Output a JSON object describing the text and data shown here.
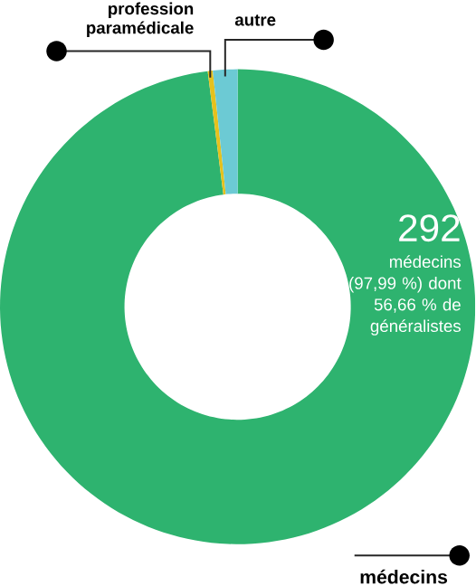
{
  "chart_data": {
    "type": "donut",
    "categories": [
      "médecins",
      "profession paramédicale",
      "autre"
    ],
    "values": [
      97.99,
      0.34,
      1.67
    ],
    "colors": [
      "#2eb36f",
      "#e6c11d",
      "#6ccad4"
    ],
    "annotations": [
      "292",
      "médecins (97,99 %) dont 56,66 % de généralistes"
    ]
  }
}
